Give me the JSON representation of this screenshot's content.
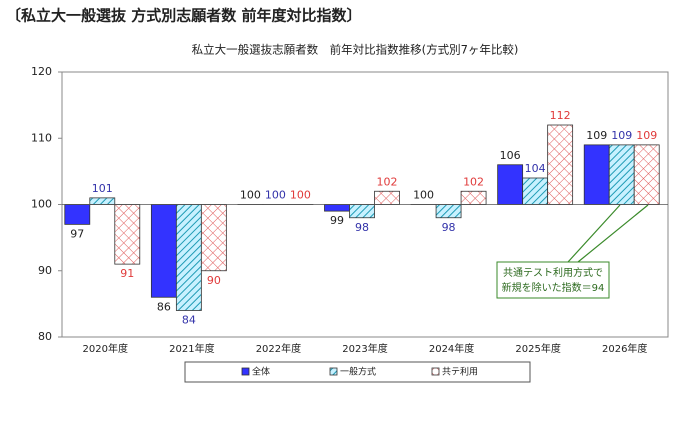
{
  "header": {
    "title": "〔私立大一般選抜 方式別志願者数 前年度対比指数〕"
  },
  "chart_data": {
    "type": "bar",
    "title": "私立大一般選抜志願者数　前年対比指数推移(方式別7ヶ年比較)",
    "categories": [
      "2020年度",
      "2021年度",
      "2022年度",
      "2023年度",
      "2024年度",
      "2025年度",
      "2026年度"
    ],
    "series": [
      {
        "name": "全体",
        "color": "#3333ff",
        "pattern": "solid",
        "label_color": "#222222",
        "values": [
          97,
          86,
          100,
          99,
          100,
          106,
          109
        ]
      },
      {
        "name": "一般方式",
        "color": "#1f9bb5",
        "pattern": "hatch",
        "label_color": "#3333aa",
        "values": [
          101,
          84,
          100,
          98,
          98,
          104,
          109
        ]
      },
      {
        "name": "共テ利用",
        "color": "#e05a5a",
        "pattern": "crosshatch",
        "label_color": "#e03a3a",
        "values": [
          91,
          90,
          100,
          102,
          102,
          112,
          109
        ]
      }
    ],
    "bar_base": 100,
    "ylim": [
      80,
      120
    ],
    "yticks": [
      80,
      90,
      100,
      110,
      120
    ],
    "grid": false,
    "legend": "bottom",
    "annotation": [
      "共通テスト利用方式で",
      "新規を除いた指数＝94"
    ]
  }
}
